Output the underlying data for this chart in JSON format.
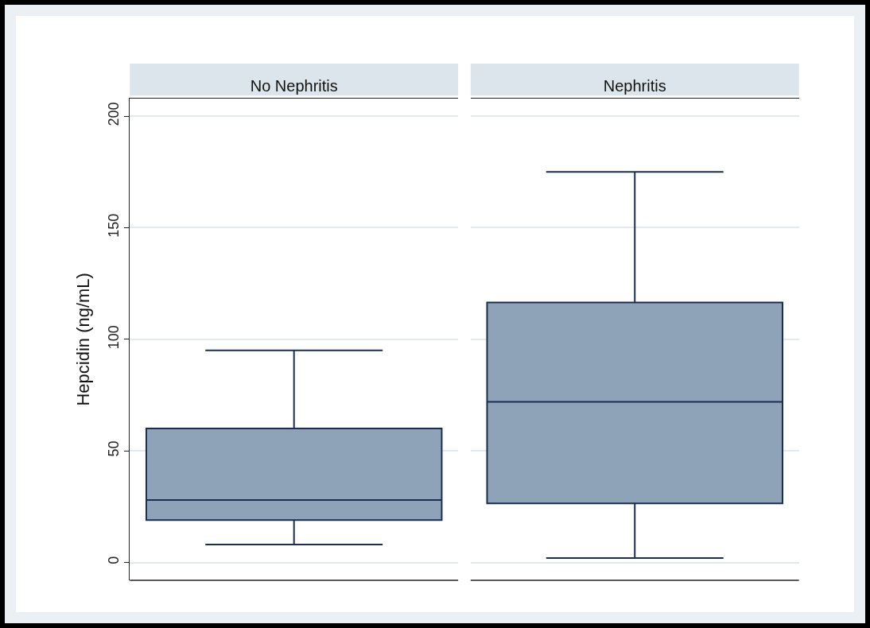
{
  "chart_data": {
    "type": "box",
    "ylabel": "Hepcidin (ng/mL)",
    "categories": [
      "No Nephritis",
      "Nephritis"
    ],
    "boxes": [
      {
        "low": 8,
        "q1": 19,
        "median": 28,
        "q3": 60,
        "high": 95
      },
      {
        "low": 2,
        "q1": 26.5,
        "median": 72,
        "q3": 116.5,
        "high": 175
      }
    ],
    "color": "#8ea3b8",
    "ylim": [
      -8,
      208
    ],
    "yticks": [
      0,
      50,
      100,
      150,
      200
    ],
    "grid": "y"
  }
}
